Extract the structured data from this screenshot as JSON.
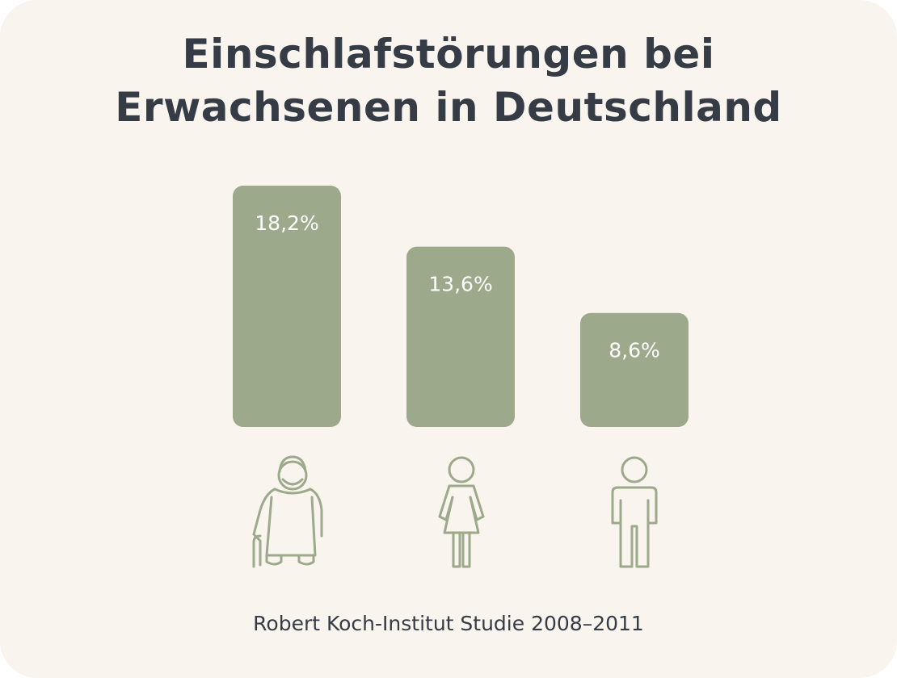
{
  "title_lines": [
    "Einschlafstörungen bei",
    "Erwachsenen in Deutschland"
  ],
  "source": "Robert Koch-Institut Studie 2008–2011",
  "colors": {
    "background": "#f9f4ee",
    "bar": "#9ca98a",
    "icon": "#9ca98a",
    "text": "#353c45",
    "bar_label": "#ffffff"
  },
  "chart_data": {
    "type": "bar",
    "title": "Einschlafstörungen bei Erwachsenen in Deutschland",
    "categories": [
      "elderly-woman-icon",
      "woman-icon",
      "man-icon"
    ],
    "values": [
      18.2,
      13.6,
      8.6
    ],
    "value_labels": [
      "18,2%",
      "13,6%",
      "8,6%"
    ],
    "unit": "%",
    "xlabel": "",
    "ylabel": "",
    "grid": false,
    "legend": "none"
  }
}
